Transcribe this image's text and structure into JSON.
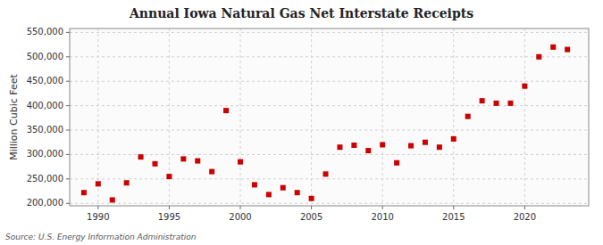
{
  "chart_data": {
    "type": "scatter",
    "title": "Annual Iowa Natural Gas Net Interstate Receipts",
    "y_label": "Million Cubic Feet",
    "annotations": [
      "Source: U.S. Energy Information Administration"
    ],
    "x": [
      1989,
      1990,
      1991,
      1992,
      1993,
      1994,
      1995,
      1996,
      1997,
      1998,
      1999,
      2000,
      2001,
      2002,
      2003,
      2004,
      2005,
      2006,
      2007,
      2008,
      2009,
      2010,
      2011,
      2012,
      2013,
      2014,
      2015,
      2016,
      2017,
      2018,
      2019,
      2020,
      2021,
      2022,
      2023
    ],
    "values": [
      222000,
      240000,
      207000,
      242000,
      295000,
      281000,
      255000,
      291000,
      287000,
      265000,
      390000,
      285000,
      238000,
      218000,
      232000,
      222000,
      210000,
      260000,
      315000,
      319000,
      308000,
      320000,
      283000,
      318000,
      325000,
      315000,
      332000,
      378000,
      410000,
      405000,
      405000,
      440000,
      500000,
      520000,
      515000
    ],
    "color": "#cc0000",
    "marker": "square",
    "xlim": [
      1988.0,
      2024.5
    ],
    "ylim": [
      195000,
      558000
    ],
    "xticks": [
      1990,
      1995,
      2000,
      2005,
      2010,
      2015,
      2020
    ],
    "yticks": [
      {
        "value": 200000,
        "label": "200,000"
      },
      {
        "value": 250000,
        "label": "250,000"
      },
      {
        "value": 300000,
        "label": "300,000"
      },
      {
        "value": 350000,
        "label": "350,000"
      },
      {
        "value": 400000,
        "label": "400,000"
      },
      {
        "value": 450000,
        "label": "450,000"
      },
      {
        "value": 500000,
        "label": "500,000"
      },
      {
        "value": 550000,
        "label": "550,000"
      }
    ],
    "grid": true
  }
}
